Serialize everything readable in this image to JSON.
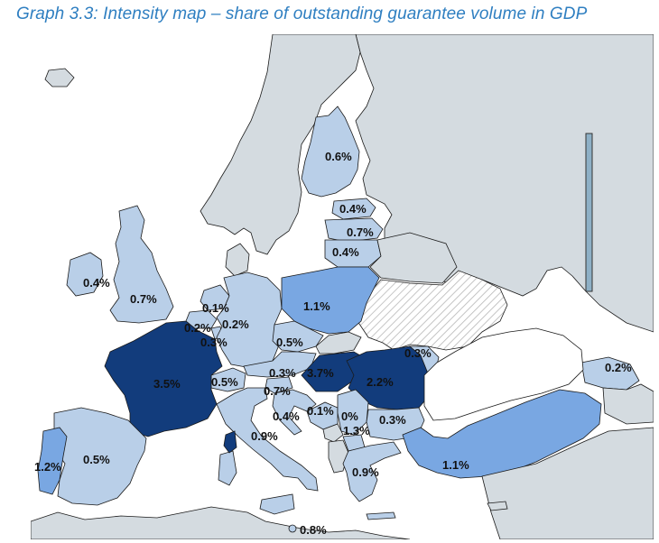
{
  "title": "Graph 3.3: Intensity map – share of outstanding guarantee volume in GDP",
  "colors": {
    "no_data": "#d4dbe0",
    "very_low": "#c6d9ef",
    "low": "#b9cfe8",
    "medium": "#79a7e2",
    "high": "#123c7c",
    "title": "#2f7fc1"
  },
  "labels": {
    "ireland": "0.4%",
    "uk": "0.7%",
    "netherlands": "0.1%",
    "belgium": "0.2%",
    "luxembourg": "0.3%",
    "germany": "0.2%",
    "france": "3.5%",
    "switzerland": "0.5%",
    "czechia": "0.5%",
    "poland": "1.1%",
    "austria": "0.3%",
    "hungary": "3.7%",
    "romania": "2.2%",
    "moldova": "0.3%",
    "slovenia": "0.7%",
    "croatia": "0.4%",
    "bosnia": "0.1%",
    "serbia": "0%",
    "bulgaria": "0.3%",
    "macedonia": "1.3%",
    "italy": "0.9%",
    "greece": "0.9%",
    "turkey": "1.1%",
    "georgia": "0.2%",
    "portugal": "1.2%",
    "spain": "0.5%",
    "finland": "0.6%",
    "estonia": "0.4%",
    "latvia": "0.7%",
    "lithuania": "0.4%",
    "malta": "0.8%"
  }
}
